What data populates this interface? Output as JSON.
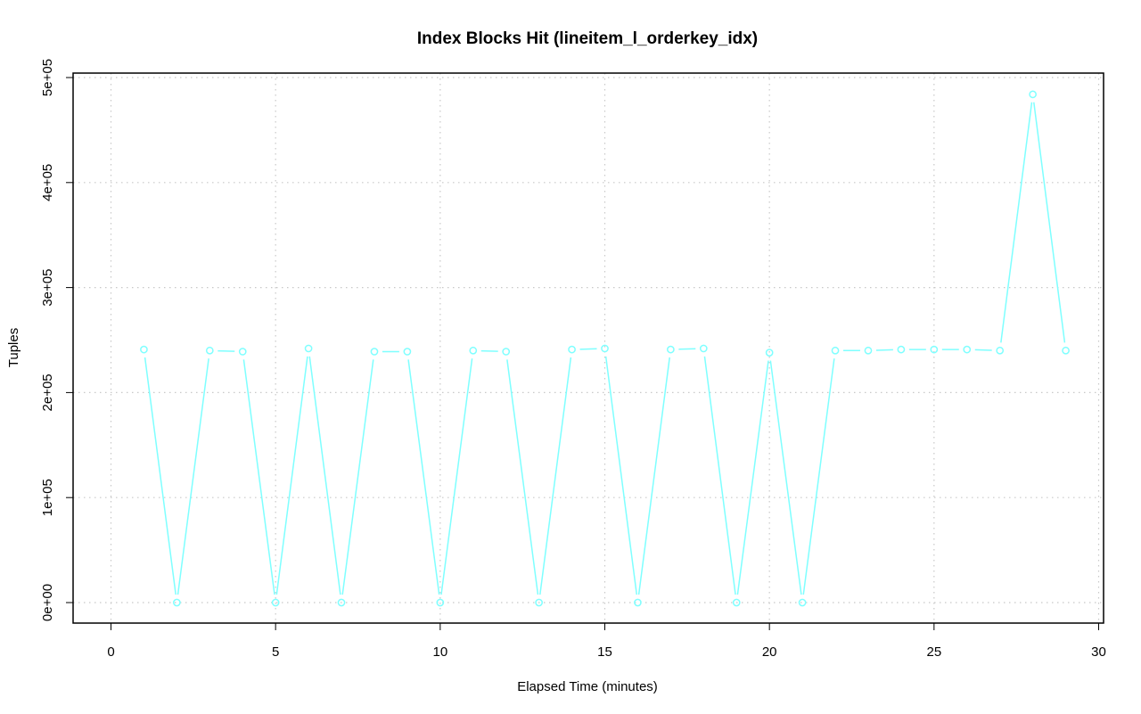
{
  "chart_data": {
    "type": "line",
    "title": "Index Blocks Hit (lineitem_l_orderkey_idx)",
    "xlabel": "Elapsed Time (minutes)",
    "ylabel": "Tuples",
    "xlim": [
      0,
      30
    ],
    "ylim": [
      0,
      500000
    ],
    "x_ticks": [
      0,
      5,
      10,
      15,
      20,
      25,
      30
    ],
    "x_tick_labels": [
      "0",
      "5",
      "10",
      "15",
      "20",
      "25",
      "30"
    ],
    "y_ticks": [
      0,
      100000,
      200000,
      300000,
      400000,
      500000
    ],
    "y_tick_labels": [
      "0e+00",
      "1e+05",
      "2e+05",
      "3e+05",
      "4e+05",
      "5e+05"
    ],
    "grid": true,
    "series": [
      {
        "color": "#7fffff",
        "x": [
          1,
          2,
          3,
          4,
          5,
          6,
          7,
          8,
          9,
          10,
          11,
          12,
          13,
          14,
          15,
          16,
          17,
          18,
          19,
          20,
          21,
          22,
          23,
          24,
          25,
          26,
          27,
          28,
          29
        ],
        "values": [
          241000,
          0,
          240000,
          239000,
          0,
          242000,
          0,
          239000,
          239000,
          0,
          240000,
          239000,
          0,
          241000,
          242000,
          0,
          241000,
          242000,
          0,
          238000,
          0,
          240000,
          240000,
          241000,
          241000,
          241000,
          240000,
          484000,
          240000
        ]
      }
    ]
  }
}
